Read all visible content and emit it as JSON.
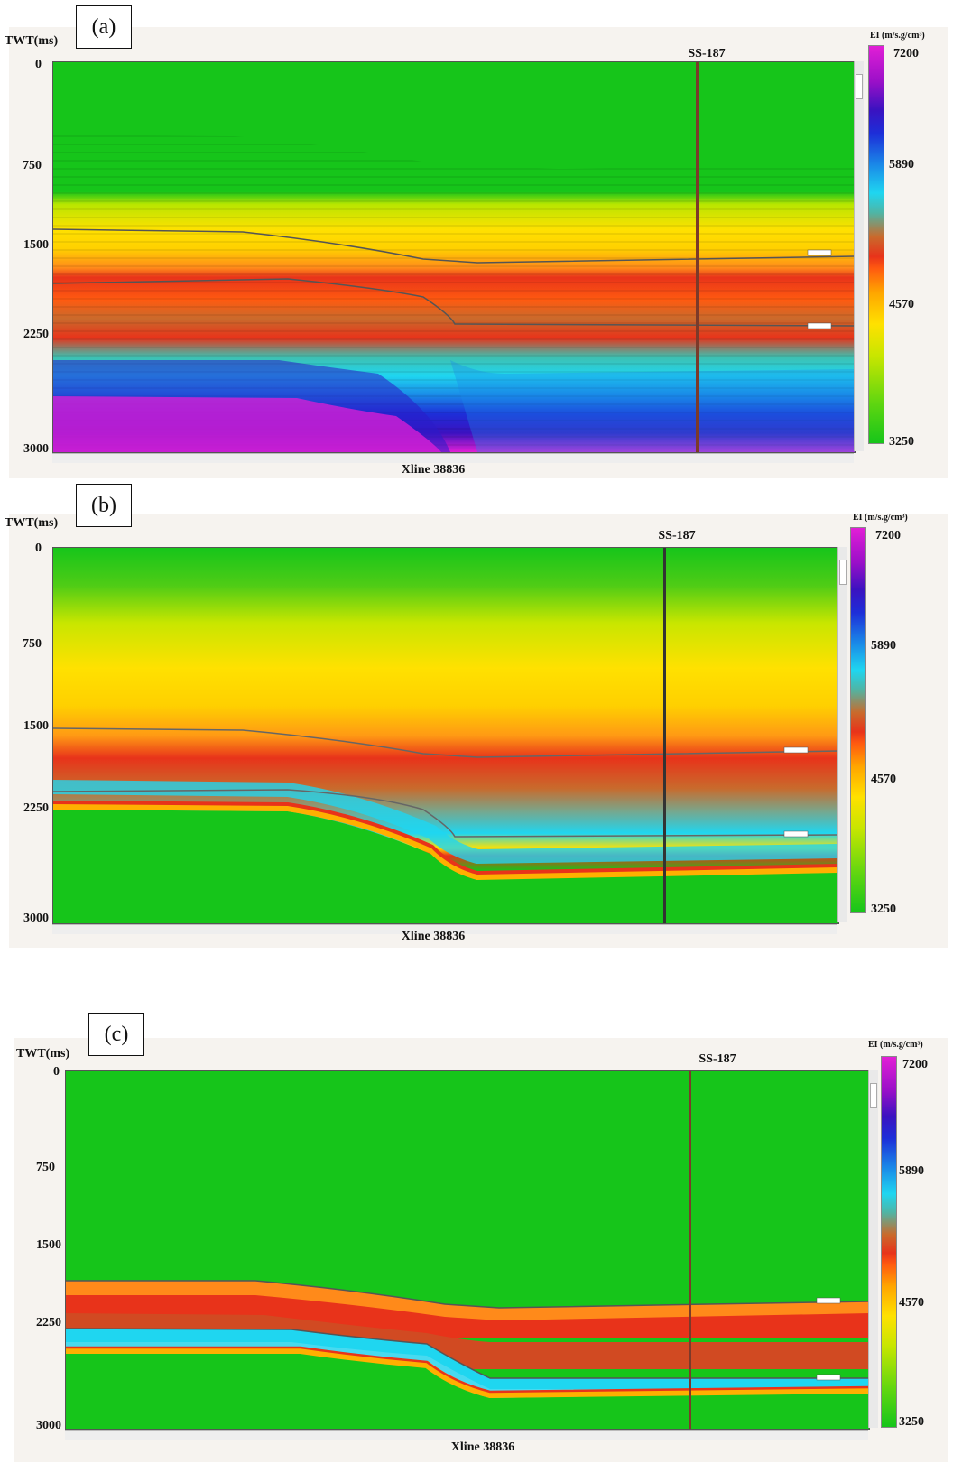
{
  "panels": [
    {
      "tag": "(a)",
      "axis_title": "TWT(ms)",
      "ticks": [
        "0",
        "750",
        "1500",
        "2250",
        "3000"
      ],
      "well": "SS-187",
      "colorbar_title": "EI (m/s.g/cm³)",
      "colorbar_ticks": [
        "7200",
        "5890",
        "4570",
        "3250"
      ],
      "xline": "Xline 38836"
    },
    {
      "tag": "(b)",
      "axis_title": "TWT(ms)",
      "ticks": [
        "0",
        "750",
        "1500",
        "2250",
        "3000"
      ],
      "well": "SS-187",
      "colorbar_title": "EI (m/s.g/cm³)",
      "colorbar_ticks": [
        "7200",
        "5890",
        "4570",
        "3250"
      ],
      "xline": "Xline 38836"
    },
    {
      "tag": "(c)",
      "axis_title": "TWT(ms)",
      "ticks": [
        "0",
        "750",
        "1500",
        "2250",
        "3000"
      ],
      "well": "SS-187",
      "colorbar_title": "EI (m/s.g/cm³)",
      "colorbar_ticks": [
        "7200",
        "5890",
        "4570",
        "3250"
      ],
      "xline": "Xline 38836"
    }
  ],
  "colors": {
    "green": "#16c51a",
    "yellow": "#ffe100",
    "orange": "#ff8a1a",
    "red": "#e8331a",
    "brown": "#c96a2c",
    "cyan": "#1fd6f0",
    "blue": "#1d2ed8",
    "magenta": "#e21fd6"
  }
}
